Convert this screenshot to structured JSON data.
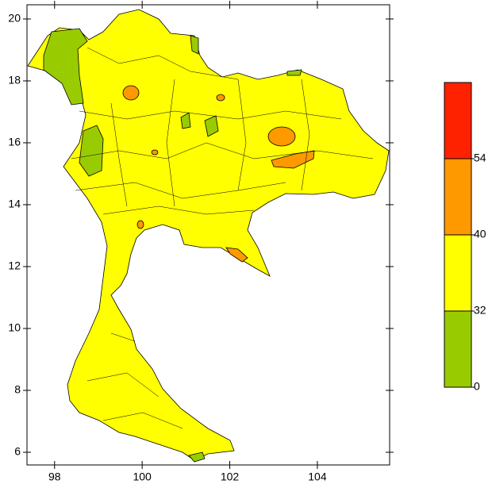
{
  "map": {
    "xlim": [
      97.37,
      105.65
    ],
    "ylim": [
      5.59,
      20.46
    ],
    "xticks": [
      98,
      100,
      102,
      104
    ],
    "yticks": [
      6,
      8,
      10,
      12,
      14,
      16,
      18,
      20
    ]
  },
  "colorbar": {
    "ticks": [
      0,
      32,
      40,
      54
    ],
    "colors": [
      "#99cc00",
      "#ffff00",
      "#ff9900",
      "#ff2200"
    ]
  }
}
